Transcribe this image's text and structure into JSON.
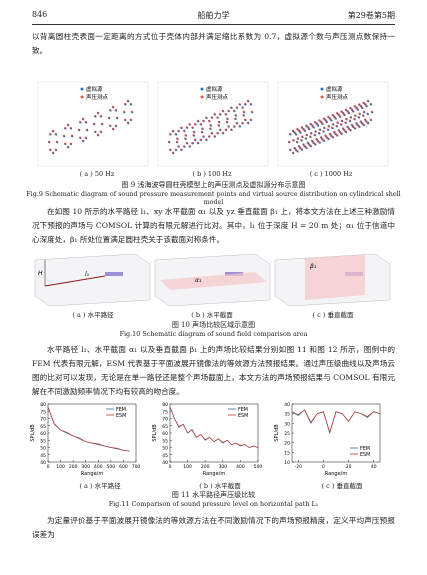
{
  "header": {
    "page": "846",
    "journal": "船舶力学",
    "issue": "第29卷第5期"
  },
  "paragraphs": [
    "以背离圆柱壳表面一定距离的方式位于壳体内部并满足缩比系数为 0.7，虚拟源个数与声压测点数保持一致。",
    "在如图 10 所示的水平路径 l₁、xy 水平截面 α₁ 以及 yz 垂直截面 β₁ 上，将本文方法在上述三种激励情况下预报的声场与 COMSOL 计算的有限元解进行比对。其中，l₁ 位于深度 H = 20 m 处；α₁ 位于信道中心深度处，β₁ 所处位置满足圆柱壳关于该截面对称条件。",
    "水平路径 l₁、水平截面 α₁ 以及垂直截面 β₁ 上的声场比较结果分别如图 11 和图 12 所示，图例中的 FEM 代表有限元解，ESM 代表基于平面波展开镜像法的等效源方法预报结果。通过声压级曲线以及声场云图的比对可以发现，无论是在单一路径还是整个声场截面上，本文方法的声场预报结果与 COMSOL 有限元解在不同激励频率情况下均有较高的吻合度。",
    "为定量评价基于平面波展开镜像法的等效源方法在不同激励情况下的声场预报精度，定义平均声压预报误差为"
  ],
  "fig9": {
    "panels": [
      "( a ) 50 Hz",
      "( b ) 100 Hz",
      "( c ) 1000 Hz"
    ],
    "legend": [
      "虚拟源",
      "声压测点"
    ],
    "caption_cn": "图 9  浅海波导圆柱壳模型上的声压测点及虚拟源分布示意图",
    "caption_en": "Fig.9  Schematic diagram of sound pressure measurement points and virtual source distribution on cylindrical shell model"
  },
  "fig10": {
    "panels": [
      "( a ) 水平路径",
      "( b ) 水平截面",
      "( c ) 垂直截面"
    ],
    "labels": [
      "H",
      "l₁",
      "α₁",
      "β₁"
    ],
    "caption_cn": "图 10  声场比较区域示意图",
    "caption_en": "Fig.10  Schematic diagram of sound field comparison area"
  },
  "fig11": {
    "panels": [
      "( a ) 水平路径",
      "( b ) 水平截面",
      "( c ) 垂直截面"
    ],
    "caption_cn": "图 11  水平路径声压级比较",
    "caption_en": "Fig.11  Comparison of sound pressure level on horizontal path L₁"
  },
  "chart_data": [
    {
      "type": "line",
      "xlabel": "Range/m",
      "ylabel": "SPL/dB",
      "legend": "upper right",
      "x": [
        0,
        50,
        100,
        150,
        200,
        250,
        300,
        350,
        400,
        450,
        500,
        550,
        600,
        650
      ],
      "series": [
        {
          "name": "FEM",
          "color": "#2b6cb0",
          "values": [
            78,
            66,
            62,
            60,
            58,
            56,
            54,
            53,
            52,
            51,
            50,
            49,
            48,
            47.5
          ]
        },
        {
          "name": "ESM",
          "color": "#c0392b",
          "values": [
            78,
            66.5,
            62,
            60.5,
            58,
            56.5,
            54,
            53,
            52.5,
            51,
            50,
            49.5,
            48,
            47.5
          ]
        }
      ],
      "xlim": [
        0,
        700
      ],
      "xticks": [
        0,
        100,
        200,
        300,
        400,
        500,
        600,
        700
      ],
      "ylim": [
        40,
        80
      ],
      "yticks": [
        40,
        45,
        50,
        55,
        60,
        65,
        70,
        75,
        80
      ]
    },
    {
      "type": "line",
      "xlabel": "Range/m",
      "ylabel": "SPL/dB",
      "legend": "upper right",
      "x": [
        0,
        25,
        50,
        75,
        100,
        125,
        150,
        175,
        200,
        225,
        250,
        275,
        300,
        325,
        350,
        375,
        400,
        425,
        450,
        475,
        500
      ],
      "series": [
        {
          "name": "FEM",
          "color": "#2b6cb0",
          "values": [
            78,
            70,
            64,
            66,
            60,
            62,
            57,
            59,
            55,
            57,
            54,
            56,
            53,
            55,
            52,
            53,
            51,
            52,
            50,
            51,
            50
          ]
        },
        {
          "name": "ESM",
          "color": "#c0392b",
          "values": [
            78,
            70,
            64.5,
            66,
            60,
            62.5,
            57,
            59,
            55.5,
            57,
            54,
            56,
            53.5,
            55,
            52,
            53,
            51.5,
            52,
            50,
            51,
            50
          ]
        }
      ],
      "xlim": [
        0,
        500
      ],
      "xticks": [
        0,
        100,
        200,
        300,
        400,
        500
      ],
      "ylim": [
        40,
        80
      ],
      "yticks": [
        40,
        45,
        50,
        55,
        60,
        65,
        70,
        75,
        80
      ]
    },
    {
      "type": "line",
      "xlabel": "Range/m",
      "ylabel": "SPL/dB",
      "legend": "lower right",
      "x": [
        -25,
        -20,
        -15,
        -10,
        -5,
        0,
        5,
        10,
        15,
        20,
        25,
        30,
        35,
        40,
        45
      ],
      "series": [
        {
          "name": "FEM",
          "color": "#2b6cb0",
          "values": [
            36,
            34,
            37,
            30,
            35,
            36,
            25,
            36,
            35,
            31,
            36,
            35,
            33,
            36,
            35
          ]
        },
        {
          "name": "ESM",
          "color": "#c0392b",
          "values": [
            36,
            34.5,
            37,
            30.5,
            35,
            36,
            25.5,
            36,
            35,
            31,
            36,
            35,
            33.5,
            36,
            35
          ]
        }
      ],
      "xlim": [
        -25,
        45
      ],
      "xticks": [
        -20,
        0,
        20,
        40
      ],
      "ylim": [
        10,
        40
      ],
      "yticks": [
        10,
        15,
        20,
        25,
        30,
        35,
        40
      ]
    }
  ]
}
